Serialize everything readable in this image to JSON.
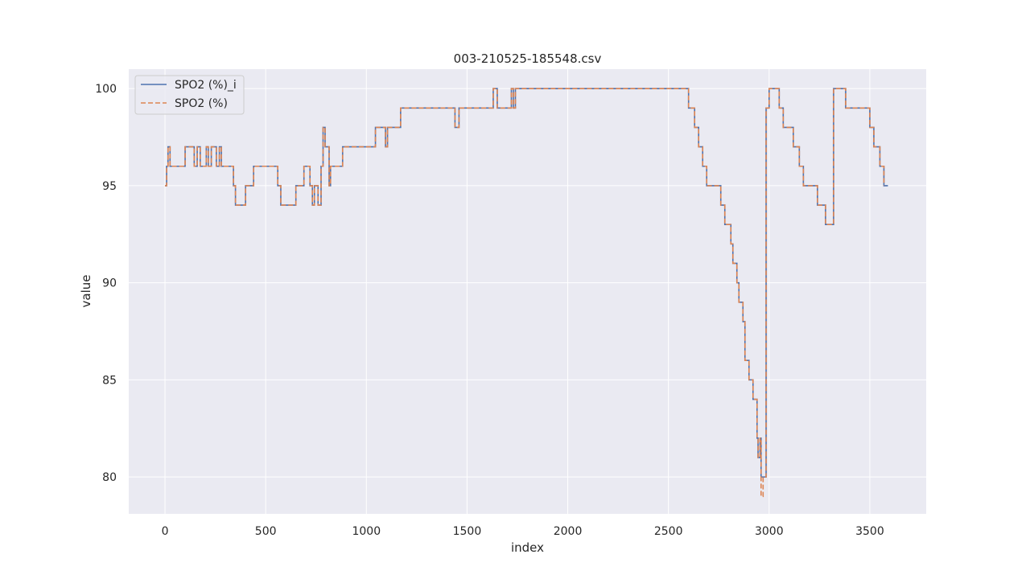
{
  "chart_data": {
    "type": "line",
    "title": "003-210525-185548.csv",
    "xlabel": "index",
    "ylabel": "value",
    "xlim": [
      -180,
      3780
    ],
    "ylim": [
      78.1,
      101.0
    ],
    "xticks": [
      0,
      500,
      1000,
      1500,
      2000,
      2500,
      3000,
      3500
    ],
    "yticks": [
      80,
      85,
      90,
      95,
      100
    ],
    "grid": true,
    "legend_position": "top-left",
    "series": [
      {
        "name": "SPO2 (%)_i",
        "color": "#4c72b0",
        "style": "solid",
        "x": [
          0,
          8,
          15,
          25,
          95,
          100,
          145,
          160,
          175,
          205,
          215,
          230,
          255,
          270,
          280,
          290,
          340,
          350,
          400,
          440,
          540,
          560,
          575,
          650,
          690,
          720,
          732,
          742,
          760,
          775,
          785,
          795,
          815,
          822,
          880,
          882,
          895,
          1040,
          1045,
          1095,
          1105,
          1125,
          1160,
          1170,
          1430,
          1440,
          1460,
          1620,
          1630,
          1650,
          1720,
          1730,
          1740,
          2580,
          2600,
          2630,
          2650,
          2670,
          2690,
          2700,
          2760,
          2780,
          2810,
          2820,
          2840,
          2850,
          2870,
          2880,
          2900,
          2920,
          2940,
          2945,
          2955,
          2960,
          2970,
          2985,
          3000,
          3050,
          3070,
          3120,
          3150,
          3170,
          3220,
          3240,
          3280,
          3300,
          3320,
          3370,
          3380,
          3490,
          3500,
          3520,
          3550,
          3570,
          3590
        ],
        "y": [
          95,
          96,
          97,
          96,
          96,
          97,
          96,
          97,
          96,
          97,
          96,
          97,
          96,
          97,
          96,
          96,
          95,
          94,
          95,
          96,
          96,
          95,
          94,
          95,
          96,
          95,
          94,
          95,
          94,
          96,
          98,
          97,
          95,
          96,
          96,
          97,
          97,
          97,
          98,
          97,
          98,
          98,
          98,
          99,
          99,
          98,
          99,
          99,
          100,
          99,
          100,
          99,
          100,
          100,
          99,
          98,
          97,
          96,
          95,
          95,
          94,
          93,
          92,
          91,
          90,
          89,
          88,
          86,
          85,
          84,
          82,
          81,
          82,
          80,
          80,
          99,
          100,
          99,
          98,
          97,
          96,
          95,
          95,
          94,
          93,
          93,
          100,
          100,
          99,
          99,
          98,
          97,
          96,
          95,
          95
        ]
      },
      {
        "name": "SPO2 (%)",
        "color": "#dd8452",
        "style": "dashed",
        "x": [
          0,
          8,
          15,
          25,
          95,
          100,
          145,
          160,
          175,
          205,
          215,
          230,
          255,
          270,
          280,
          290,
          340,
          350,
          400,
          440,
          540,
          560,
          575,
          650,
          690,
          720,
          732,
          742,
          760,
          775,
          785,
          795,
          815,
          822,
          880,
          882,
          895,
          1040,
          1045,
          1095,
          1105,
          1125,
          1160,
          1170,
          1430,
          1440,
          1460,
          1620,
          1630,
          1650,
          1720,
          1730,
          1740,
          2580,
          2600,
          2630,
          2650,
          2670,
          2690,
          2700,
          2760,
          2780,
          2810,
          2820,
          2840,
          2850,
          2870,
          2880,
          2900,
          2920,
          2940,
          2945,
          2955,
          2960,
          2970,
          2985,
          3000,
          3050,
          3070,
          3120,
          3150,
          3170,
          3220,
          3240,
          3280,
          3300,
          3320,
          3370,
          3380,
          3490,
          3500,
          3520,
          3550,
          3570
        ],
        "y": [
          95,
          96,
          97,
          96,
          96,
          97,
          96,
          97,
          96,
          97,
          96,
          97,
          96,
          97,
          96,
          96,
          95,
          94,
          95,
          96,
          96,
          95,
          94,
          95,
          96,
          95,
          94,
          95,
          94,
          96,
          98,
          97,
          95,
          96,
          96,
          97,
          97,
          97,
          98,
          97,
          98,
          98,
          98,
          99,
          99,
          98,
          99,
          99,
          100,
          99,
          100,
          99,
          100,
          100,
          99,
          98,
          97,
          96,
          95,
          95,
          94,
          93,
          92,
          91,
          90,
          89,
          88,
          86,
          85,
          84,
          82,
          81,
          82,
          79,
          80,
          99,
          100,
          99,
          98,
          97,
          96,
          95,
          95,
          94,
          93,
          93,
          100,
          100,
          99,
          99,
          98,
          97,
          96,
          95
        ]
      }
    ]
  }
}
